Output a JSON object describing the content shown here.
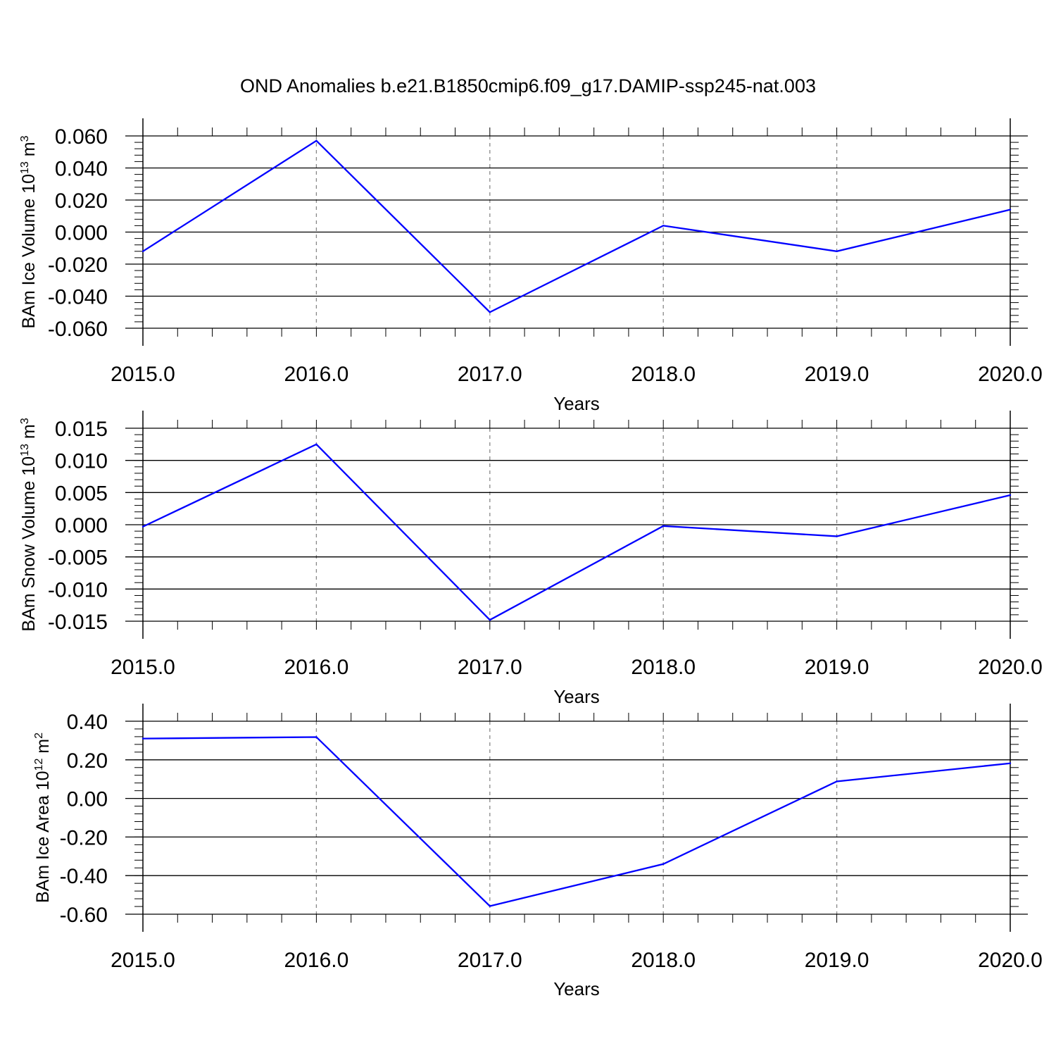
{
  "title": "OND Anomalies b.e21.B1850cmip6.f09_g17.DAMIP-ssp245-nat.003",
  "chart_data": [
    {
      "type": "line",
      "ylabel": {
        "main": "BAm Ice Volume 10",
        "exp": "13",
        "unit": " m",
        "unit_exp": "3"
      },
      "xlabel": "Years",
      "xlim": [
        2015,
        2020
      ],
      "ylim": [
        -0.06,
        0.06
      ],
      "x_ticks": [
        2015,
        2016,
        2017,
        2018,
        2019,
        2020
      ],
      "x_tick_labels": [
        "2015.0",
        "2016.0",
        "2017.0",
        "2018.0",
        "2019.0",
        "2020.0"
      ],
      "y_ticks": [
        0.06,
        0.04,
        0.02,
        0.0,
        -0.02,
        -0.04,
        -0.06
      ],
      "y_tick_labels": [
        "0.060",
        "0.040",
        "0.020",
        "0.000",
        "-0.020",
        "-0.040",
        "-0.060"
      ],
      "grid": "vertical dashed",
      "color": "#0000ff",
      "x": [
        2015,
        2016,
        2017,
        2018,
        2019,
        2020
      ],
      "values": [
        -0.012,
        0.057,
        -0.05,
        0.004,
        -0.012,
        0.014
      ]
    },
    {
      "type": "line",
      "ylabel": {
        "main": "BAm Snow Volume 10",
        "exp": "13",
        "unit": " m",
        "unit_exp": "3"
      },
      "xlabel": "Years",
      "xlim": [
        2015,
        2020
      ],
      "ylim": [
        -0.015,
        0.015
      ],
      "x_ticks": [
        2015,
        2016,
        2017,
        2018,
        2019,
        2020
      ],
      "x_tick_labels": [
        "2015.0",
        "2016.0",
        "2017.0",
        "2018.0",
        "2019.0",
        "2020.0"
      ],
      "y_ticks": [
        0.015,
        0.01,
        0.005,
        0.0,
        -0.005,
        -0.01,
        -0.015
      ],
      "y_tick_labels": [
        "0.015",
        "0.010",
        "0.005",
        "0.000",
        "-0.005",
        "-0.010",
        "-0.015"
      ],
      "grid": "vertical dashed",
      "color": "#0000ff",
      "x": [
        2015,
        2016,
        2017,
        2018,
        2019,
        2020
      ],
      "values": [
        -0.0003,
        0.0125,
        -0.0148,
        -0.0002,
        -0.0018,
        0.0046
      ]
    },
    {
      "type": "line",
      "ylabel": {
        "main": "BAm Ice Area 10",
        "exp": "12",
        "unit": " m",
        "unit_exp": "2"
      },
      "xlabel": "Years",
      "xlim": [
        2015,
        2020
      ],
      "ylim": [
        -0.6,
        0.4
      ],
      "x_ticks": [
        2015,
        2016,
        2017,
        2018,
        2019,
        2020
      ],
      "x_tick_labels": [
        "2015.0",
        "2016.0",
        "2017.0",
        "2018.0",
        "2019.0",
        "2020.0"
      ],
      "y_ticks": [
        0.4,
        0.2,
        0.0,
        -0.2,
        -0.4,
        -0.6
      ],
      "y_tick_labels": [
        "0.40",
        "0.20",
        "0.00",
        "-0.20",
        "-0.40",
        "-0.60"
      ],
      "grid": "vertical dashed",
      "color": "#0000ff",
      "x": [
        2015,
        2016,
        2017,
        2018,
        2019,
        2020
      ],
      "values": [
        0.31,
        0.318,
        -0.558,
        -0.34,
        0.088,
        0.182
      ]
    }
  ]
}
